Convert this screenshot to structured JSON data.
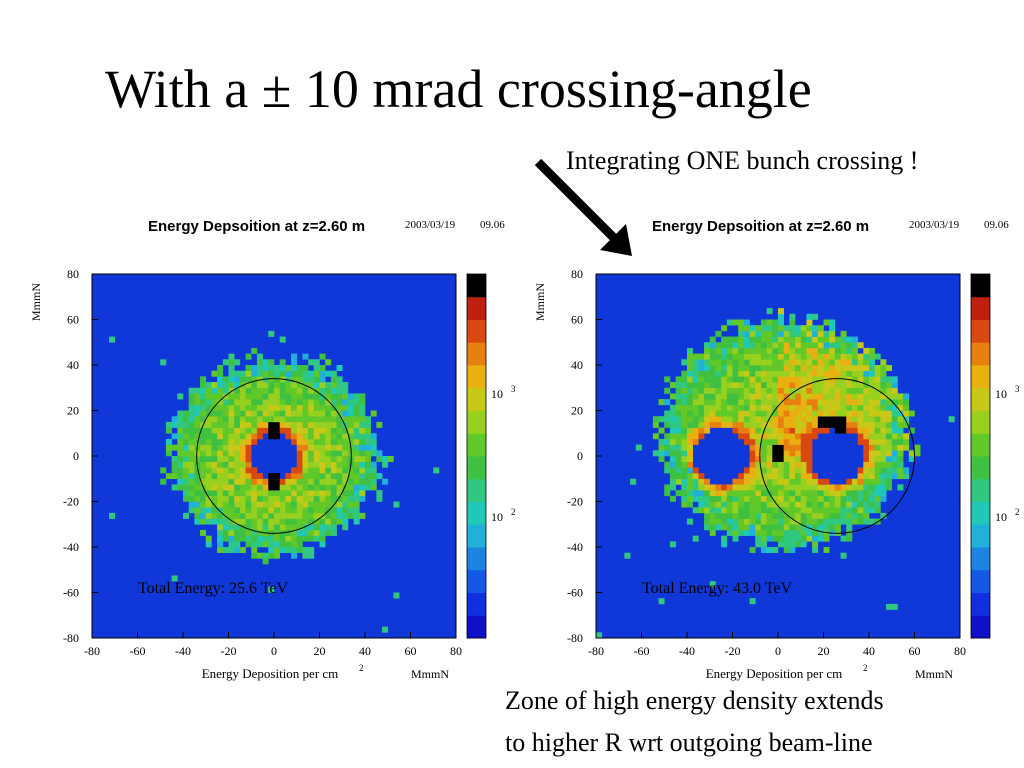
{
  "slide": {
    "title": "With a ± 10 mrad crossing-angle",
    "callout_top": "Integrating ONE bunch crossing !",
    "callout_bottom_line1": "Zone of high energy density extends",
    "callout_bottom_line2": "to higher R wrt outgoing beam-line"
  },
  "chart_data": [
    {
      "type": "heatmap",
      "title": "Energy Depsoition at z=2.60 m",
      "date": "2003/03/19",
      "time": "09.06",
      "xlabel": "Energy Deposition per cm",
      "xlabel_sup": "2",
      "xunit": "MmmN",
      "ylabel": "MmmN",
      "xlim": [
        -80,
        80
      ],
      "ylim": [
        -80,
        80
      ],
      "xticks": [
        -80,
        -60,
        -40,
        -20,
        0,
        20,
        40,
        60,
        80
      ],
      "yticks": [
        -80,
        -60,
        -40,
        -20,
        0,
        20,
        40,
        60,
        80
      ],
      "colorbar_labels": [
        {
          "base": "10",
          "exp": "3"
        },
        {
          "base": "10",
          "exp": "2"
        }
      ],
      "annotation": "Total Energy: 25.6 TeV",
      "inner_hole": {
        "x": 0,
        "y": 0,
        "r": 10
      },
      "deposit_region": {
        "x": 0,
        "y": 0,
        "r_outer": 47
      },
      "reference_circle": {
        "x": 0,
        "y": 0,
        "r": 34
      },
      "hotspots": [
        {
          "x": 0,
          "y": 12
        },
        {
          "x": 0,
          "y": -12
        }
      ]
    },
    {
      "type": "heatmap",
      "title": "Energy Depsoition at z=2.60 m",
      "date": "2003/03/19",
      "time": "09.06",
      "xlabel": "Energy Deposition per cm",
      "xlabel_sup": "2",
      "xunit": "MmmN",
      "ylabel": "MmmN",
      "xlim": [
        -80,
        80
      ],
      "ylim": [
        -80,
        80
      ],
      "xticks": [
        -80,
        -60,
        -40,
        -20,
        0,
        20,
        40,
        60,
        80
      ],
      "yticks": [
        -80,
        -60,
        -40,
        -20,
        0,
        20,
        40,
        60,
        80
      ],
      "colorbar_labels": [
        {
          "base": "10",
          "exp": "3"
        },
        {
          "base": "10",
          "exp": "2"
        }
      ],
      "annotation": "Total Energy: 43.0 TeV",
      "holes": [
        {
          "x": -25,
          "y": 0,
          "r": 12
        },
        {
          "x": 26,
          "y": 0,
          "r": 12
        }
      ],
      "deposit_region": {
        "x": 3,
        "y": 10,
        "r_outer": 55
      },
      "reference_circle": {
        "x": 26,
        "y": 0,
        "r": 34
      },
      "hotspots": [
        {
          "x": 22,
          "y": 15
        },
        {
          "x": 27,
          "y": 14
        },
        {
          "x": 0,
          "y": 2
        }
      ]
    }
  ]
}
